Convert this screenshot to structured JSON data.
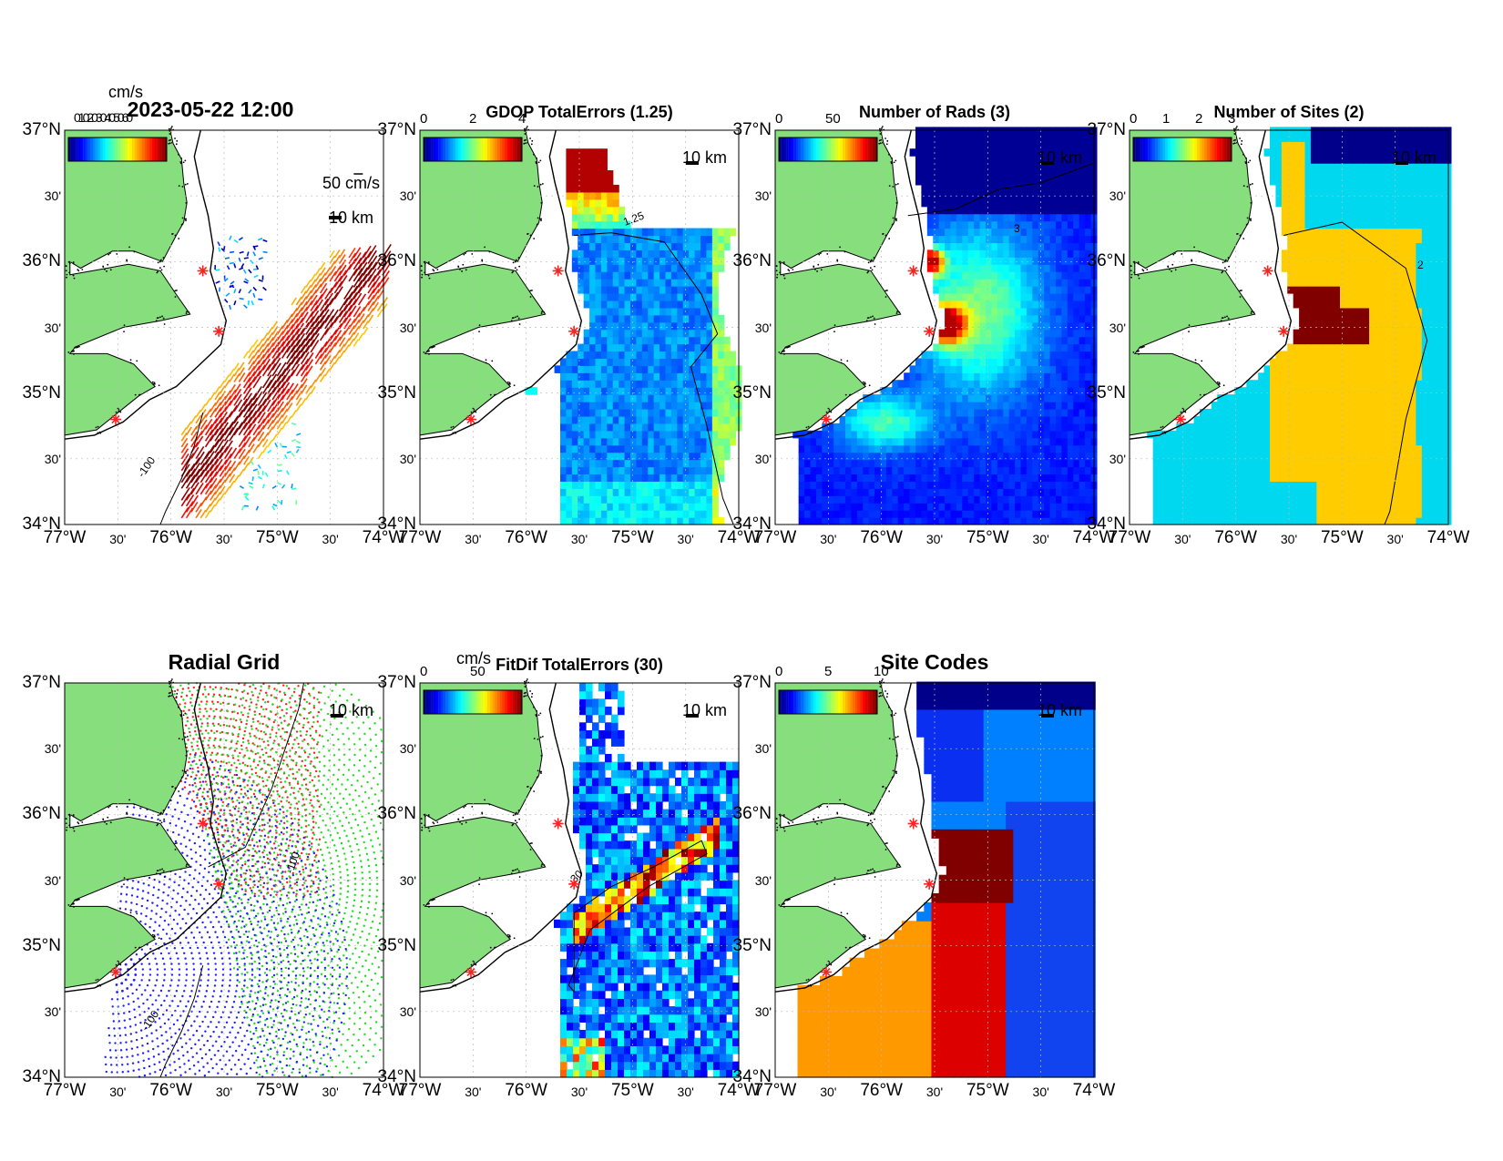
{
  "layout": {
    "lat_ticks_deg": [
      "37°N",
      "36°N",
      "35°N",
      "34°N"
    ],
    "min_tick": "30'",
    "lon_ticks_deg": [
      "77°W",
      "76°W",
      "75°W",
      "74°W"
    ]
  },
  "scale_bar_label": "10 km",
  "sites": [
    {
      "lon": -75.7,
      "lat": 35.93
    },
    {
      "lon": -75.55,
      "lat": 35.47
    },
    {
      "lon": -76.52,
      "lat": 34.8
    }
  ],
  "colors": {
    "land": "#86de7d",
    "water": "#ffffff",
    "site": "#ff2020"
  },
  "chart_data": [
    {
      "id": "total-vectors",
      "type": "quiver",
      "title": "2023-05-22 12:00",
      "colorbar": {
        "unit": "cm/s",
        "ticks": [],
        "overlap_text": "0102030405060"
      },
      "vector_scale_label": "50 cm/s",
      "contour_label": "-100",
      "extent": {
        "lon": [
          -77,
          -74
        ],
        "lat": [
          34,
          37
        ]
      }
    },
    {
      "id": "gdop",
      "type": "heatmap",
      "title": "GDOP TotalErrors (1.25)",
      "colorbar": {
        "ticks": [
          "0",
          "2",
          "4"
        ]
      },
      "contour_levels": [
        "1.25",
        "1.25",
        "1.25"
      ],
      "extent": {
        "lon": [
          -77,
          -74
        ],
        "lat": [
          34,
          37
        ]
      }
    },
    {
      "id": "num-rads",
      "type": "heatmap",
      "title": "Number of Rads (3)",
      "colorbar": {
        "ticks": [
          "0",
          "50"
        ]
      },
      "contour_levels": [
        "3"
      ],
      "extent": {
        "lon": [
          -77,
          -74
        ],
        "lat": [
          34,
          37
        ]
      }
    },
    {
      "id": "num-sites",
      "type": "heatmap",
      "title": "Number of Sites (2)",
      "colorbar": {
        "ticks": [
          "0",
          "1",
          "2",
          "3"
        ]
      },
      "contour_levels": [
        "2",
        "2",
        "2",
        "2",
        "2"
      ],
      "categories": [
        {
          "value": 1,
          "color": "#00d8f0"
        },
        {
          "value": 2,
          "color": "#ffcc00"
        },
        {
          "value": 3,
          "color": "#800000"
        }
      ],
      "extent": {
        "lon": [
          -77,
          -74
        ],
        "lat": [
          34,
          37
        ]
      }
    },
    {
      "id": "radial-grid",
      "type": "scatter",
      "title": "Radial Grid",
      "series": [
        {
          "color": "#ff2020"
        },
        {
          "color": "#20dd20"
        },
        {
          "color": "#2020ff"
        }
      ],
      "contour_labels": [
        "-100",
        "-100"
      ],
      "extent": {
        "lon": [
          -77,
          -74
        ],
        "lat": [
          34,
          37
        ]
      }
    },
    {
      "id": "fitdif",
      "type": "heatmap",
      "title": "FitDif TotalErrors (30)",
      "colorbar": {
        "unit": "cm/s",
        "ticks": [
          "0",
          "50"
        ]
      },
      "contour_levels": [
        "30",
        "30",
        "30",
        "30"
      ],
      "extent": {
        "lon": [
          -77,
          -74
        ],
        "lat": [
          34,
          37
        ]
      }
    },
    {
      "id": "site-codes",
      "type": "heatmap",
      "title": "Site Codes",
      "colorbar": {
        "ticks": [
          "0",
          "5",
          "10"
        ]
      },
      "extent": {
        "lon": [
          -77,
          -74
        ],
        "lat": [
          34,
          37
        ]
      }
    }
  ]
}
